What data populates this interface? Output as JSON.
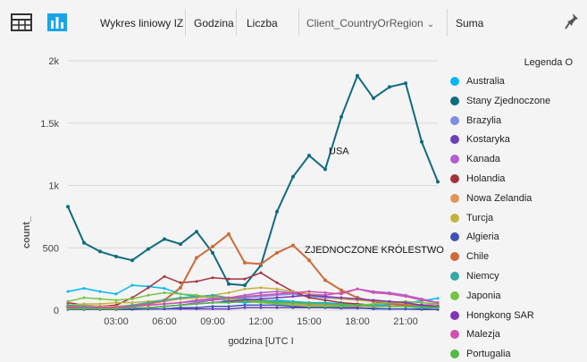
{
  "toolbar": {
    "chart_type": "Wykres liniowy IZ",
    "axis_field": "Godzina",
    "value_field": "Liczba",
    "legend_field": "Client_CountryOrRegion",
    "aggregation": "Suma",
    "icons": [
      "table-icon",
      "column-chart-icon",
      "pin-icon"
    ]
  },
  "colors": {
    "accent_icon": "#1aa4e8",
    "grid": "#d8d8d8"
  },
  "chart_data": {
    "type": "line",
    "xlabel": "godzina [UTC I",
    "ylabel": "count_",
    "x_ticks": [
      "03:00",
      "06:00",
      "09:00",
      "12:00",
      "15:00",
      "18:00",
      "21:00"
    ],
    "x_tick_hours": [
      3,
      6,
      9,
      12,
      15,
      18,
      21
    ],
    "y_ticks": [
      "0",
      "500",
      "1k",
      "1.5k",
      "2k"
    ],
    "y_tick_values": [
      0,
      500,
      1000,
      1500,
      2000
    ],
    "xlim": [
      0,
      23
    ],
    "ylim": [
      0,
      2000
    ],
    "legend_title": "Legenda O",
    "legend_position": "right",
    "x": [
      0,
      1,
      2,
      3,
      4,
      5,
      6,
      7,
      8,
      9,
      10,
      11,
      12,
      13,
      14,
      15,
      16,
      17,
      18,
      19,
      20,
      21,
      22,
      23
    ],
    "series": [
      {
        "name": "Australia",
        "color": "#00b7f1",
        "values": [
          150,
          175,
          150,
          130,
          200,
          190,
          175,
          130,
          110,
          100,
          70,
          60,
          70,
          80,
          70,
          60,
          60,
          50,
          50,
          40,
          45,
          55,
          75,
          95
        ]
      },
      {
        "name": "Stany Zjednoczone",
        "color": "#0f6b7f",
        "values": [
          830,
          540,
          470,
          430,
          400,
          490,
          570,
          530,
          630,
          460,
          210,
          200,
          360,
          790,
          1070,
          1240,
          1130,
          1550,
          1880,
          1700,
          1790,
          1820,
          1350,
          1030
        ]
      },
      {
        "name": "Brazylia",
        "color": "#7b8ee0",
        "values": [
          20,
          25,
          30,
          35,
          30,
          40,
          50,
          60,
          70,
          80,
          90,
          100,
          110,
          120,
          130,
          110,
          100,
          90,
          80,
          70,
          60,
          50,
          40,
          30
        ]
      },
      {
        "name": "Kostaryka",
        "color": "#6a3fb8",
        "values": [
          5,
          5,
          5,
          5,
          5,
          10,
          10,
          10,
          10,
          10,
          10,
          20,
          20,
          20,
          20,
          20,
          20,
          15,
          15,
          15,
          10,
          10,
          10,
          5
        ]
      },
      {
        "name": "Kanada",
        "color": "#b35ed1",
        "values": [
          10,
          15,
          10,
          10,
          15,
          20,
          30,
          40,
          60,
          80,
          100,
          120,
          140,
          150,
          140,
          130,
          120,
          140,
          170,
          150,
          140,
          120,
          90,
          60
        ]
      },
      {
        "name": "Holandia",
        "color": "#a2333d",
        "values": [
          60,
          40,
          30,
          40,
          100,
          180,
          270,
          220,
          230,
          260,
          250,
          250,
          300,
          220,
          150,
          100,
          80,
          60,
          50,
          40,
          30,
          30,
          25,
          20
        ]
      },
      {
        "name": "Nowa Zelandia",
        "color": "#e0945a",
        "values": [
          30,
          40,
          30,
          30,
          40,
          50,
          70,
          90,
          100,
          110,
          90,
          80,
          70,
          60,
          50,
          40,
          40,
          30,
          30,
          30,
          30,
          40,
          40,
          50
        ]
      },
      {
        "name": "Turcja",
        "color": "#c2b33c",
        "values": [
          40,
          50,
          50,
          60,
          60,
          70,
          80,
          90,
          100,
          120,
          140,
          170,
          180,
          170,
          150,
          130,
          110,
          90,
          80,
          70,
          60,
          50,
          40,
          30
        ]
      },
      {
        "name": "Algieria",
        "color": "#3d53b8",
        "values": [
          5,
          5,
          5,
          5,
          10,
          10,
          10,
          20,
          20,
          30,
          30,
          40,
          40,
          40,
          30,
          30,
          20,
          20,
          20,
          10,
          10,
          10,
          5,
          5
        ]
      },
      {
        "name": "Chile",
        "color": "#cc6b3a",
        "values": [
          30,
          20,
          20,
          20,
          30,
          50,
          80,
          180,
          420,
          510,
          610,
          380,
          370,
          460,
          520,
          400,
          240,
          160,
          100,
          70,
          50,
          40,
          40,
          30
        ]
      },
      {
        "name": "Niemcy",
        "color": "#3aa8a8",
        "values": [
          40,
          30,
          20,
          20,
          40,
          60,
          80,
          100,
          110,
          120,
          100,
          90,
          80,
          70,
          60,
          60,
          50,
          50,
          40,
          40,
          30,
          30,
          30,
          30
        ]
      },
      {
        "name": "Japonia",
        "color": "#78c245",
        "values": [
          70,
          100,
          90,
          80,
          90,
          120,
          140,
          130,
          120,
          100,
          80,
          70,
          60,
          50,
          40,
          30,
          30,
          30,
          40,
          50,
          60,
          70,
          60,
          50
        ]
      },
      {
        "name": "Hongkong SAR",
        "color": "#7f35b8",
        "values": [
          10,
          10,
          10,
          10,
          20,
          20,
          30,
          40,
          50,
          60,
          70,
          80,
          90,
          100,
          110,
          120,
          110,
          100,
          90,
          80,
          70,
          60,
          40,
          30
        ]
      },
      {
        "name": "Malezja",
        "color": "#d150ad",
        "values": [
          20,
          20,
          20,
          20,
          30,
          40,
          50,
          60,
          80,
          90,
          100,
          110,
          120,
          130,
          140,
          150,
          140,
          130,
          170,
          140,
          130,
          110,
          80,
          60
        ]
      },
      {
        "name": "Portugalia",
        "color": "#53b847",
        "values": [
          10,
          10,
          10,
          10,
          20,
          20,
          30,
          40,
          50,
          60,
          60,
          70,
          70,
          60,
          60,
          50,
          50,
          40,
          40,
          30,
          30,
          30,
          20,
          20
        ]
      }
    ],
    "annotations": [
      {
        "text": "USA",
        "x": 16,
        "y": 1250
      },
      {
        "text": "ZJEDNOCZONE KRÓLESTWO",
        "x": 14.5,
        "y": 460
      }
    ]
  }
}
